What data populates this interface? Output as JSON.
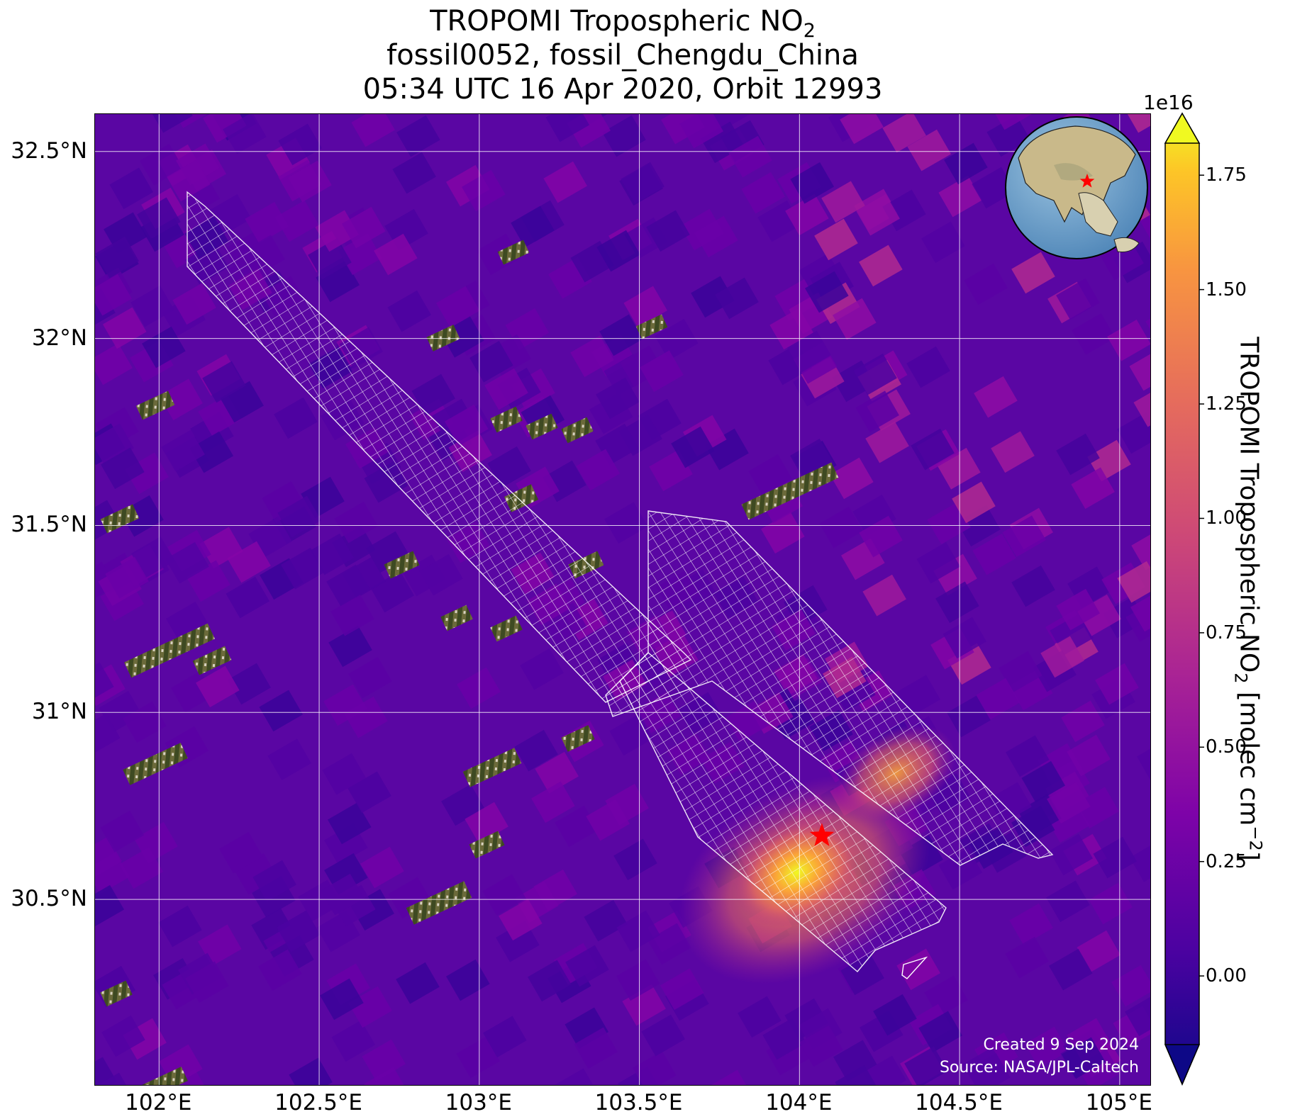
{
  "title": {
    "line1_main": "TROPOMI Tropospheric NO",
    "line1_sub": "2",
    "line2": "fossil0052, fossil_Chengdu_China",
    "line3": "05:34 UTC 16 Apr 2020, Orbit 12993"
  },
  "map": {
    "lon_range": [
      101.8,
      105.1
    ],
    "lat_range": [
      30.0,
      32.6
    ],
    "lat_ticks": [
      {
        "value": 32.5,
        "label": "32.5°N"
      },
      {
        "value": 32.0,
        "label": "32°N"
      },
      {
        "value": 31.5,
        "label": "31.5°N"
      },
      {
        "value": 31.0,
        "label": "31°N"
      },
      {
        "value": 30.5,
        "label": "30.5°N"
      }
    ],
    "lon_ticks": [
      {
        "value": 102.0,
        "label": "102°E"
      },
      {
        "value": 102.5,
        "label": "102.5°E"
      },
      {
        "value": 103.0,
        "label": "103°E"
      },
      {
        "value": 103.5,
        "label": "103.5°E"
      },
      {
        "value": 104.0,
        "label": "104°E"
      },
      {
        "value": 104.5,
        "label": "104.5°E"
      },
      {
        "value": 105.0,
        "label": "105°E"
      }
    ],
    "target": {
      "lon": 104.07,
      "lat": 30.67,
      "marker": "red-star-icon"
    },
    "grid": true
  },
  "colorbar": {
    "colormap": "plasma",
    "min": -0.15,
    "max": 1.82,
    "exponent_label": "1e16",
    "label_main": "TROPOMI Tropospheric NO",
    "label_sub": "2",
    "label_unit_start": " [molec cm",
    "label_unit_sup": "−2",
    "label_unit_end": "]",
    "ticks": [
      {
        "value": 1.75,
        "label": "1.75"
      },
      {
        "value": 1.5,
        "label": "1.50"
      },
      {
        "value": 1.25,
        "label": "1.25"
      },
      {
        "value": 1.0,
        "label": "1.00"
      },
      {
        "value": 0.75,
        "label": "0.75"
      },
      {
        "value": 0.5,
        "label": "0.50"
      },
      {
        "value": 0.25,
        "label": "0.25"
      },
      {
        "value": 0.0,
        "label": "0.00"
      }
    ]
  },
  "inset_globe": {
    "marker": "red-star-icon"
  },
  "credits": {
    "created": "Created 9 Sep 2024",
    "source": "Source: NASA/JPL-Caltech"
  },
  "colors": {
    "plume_peak": "#f0f921",
    "background_low": "#4a02a0",
    "grid_line": "#ffffff",
    "target_star": "#ff0000"
  }
}
